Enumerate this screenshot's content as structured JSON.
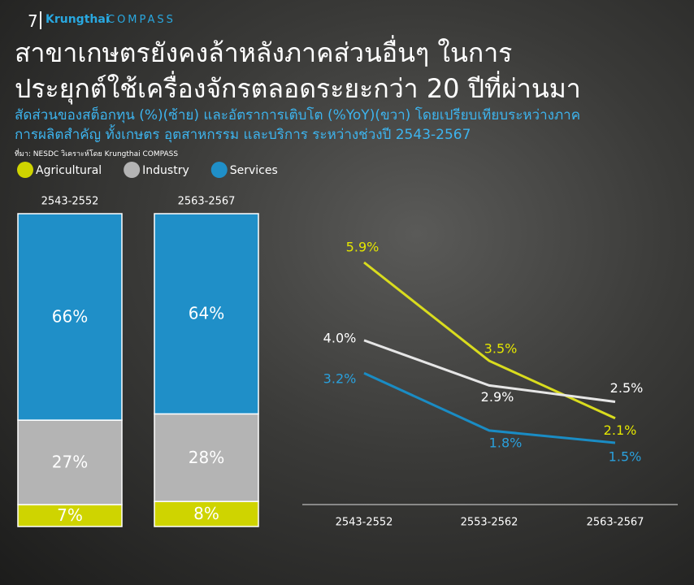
{
  "header": {
    "page_number": "7",
    "brand": "Krungthai",
    "brand_suffix": "COMPASS",
    "title_line1": "สาขาเกษตรยังคงล้าหลังภาคส่วนอื่นๆ ในการ",
    "title_line2": "ประยุกต์ใช้เครื่องจักรตลอดระยะกว่า 20 ปีที่ผ่านมา",
    "subtitle_line1": "สัดส่วนของสต็อกทุน (%)(ซ้าย) และอัตราการเติบโต (%YoY)(ขวา) โดยเปรียบเทียบระหว่างภาค",
    "subtitle_line2": "การผลิตสำคัญ ทั้งเกษตร อุตสาหกรรม และบริการ ระหว่างช่วงปี 2543-2567",
    "source": "ที่มา: NESDC วิเคราะห์โดย Krungthai COMPASS"
  },
  "chart_data": [
    {
      "type": "stacked_bar",
      "categories": [
        "2543-2552",
        "2563-2567"
      ],
      "series": [
        {
          "name": "Agricultural",
          "color": "#cfd400",
          "values": [
            7,
            8
          ],
          "value_labels": [
            "7%",
            "8%"
          ]
        },
        {
          "name": "Industry",
          "color": "#b4b4b4",
          "values": [
            27,
            28
          ],
          "value_labels": [
            "27%",
            "28%"
          ]
        },
        {
          "name": "Services",
          "color": "#1f8fc8",
          "values": [
            66,
            64
          ],
          "value_labels": [
            "66%",
            "64%"
          ]
        }
      ]
    },
    {
      "type": "line",
      "categories": [
        "2543-2552",
        "2553-2562",
        "2563-2567"
      ],
      "series": [
        {
          "color": "#d9dc1e",
          "values": [
            5.9,
            3.5,
            2.1
          ],
          "value_labels": [
            "5.9%",
            "3.5%",
            "2.1%"
          ]
        },
        {
          "color": "#e6e6e6",
          "values": [
            4.0,
            2.9,
            2.5
          ],
          "value_labels": [
            "4.0%",
            "2.9%",
            "2.5%"
          ]
        },
        {
          "color": "#1a8cc4",
          "values": [
            3.2,
            1.8,
            1.5
          ],
          "value_labels": [
            "3.2%",
            "1.8%",
            "1.5%"
          ]
        }
      ]
    }
  ]
}
